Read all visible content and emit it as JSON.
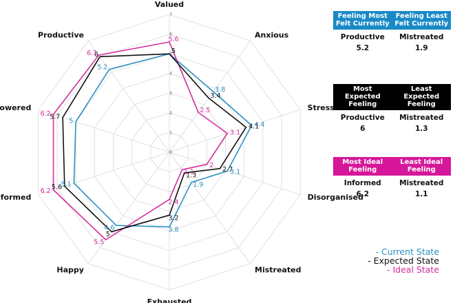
{
  "chart_data": {
    "type": "radar",
    "categories": [
      "Valued",
      "Anxious",
      "Stressed",
      "Disorganised",
      "Mistreated",
      "Exhausted",
      "Happy",
      "Informed",
      "Empowered",
      "Productive"
    ],
    "rlim": [
      0,
      7
    ],
    "r_ticks": [
      "0",
      "1",
      "2",
      "3",
      "4",
      "5",
      "6",
      "7"
    ],
    "grid": true,
    "legend_position": "bottom-right",
    "series": [
      {
        "name": "Current State",
        "color": "#2b8fc1",
        "values": [
          5,
          3.8,
          4.4,
          3.1,
          1.9,
          3.8,
          4.6,
          5.1,
          5,
          5.2
        ],
        "labels": [
          "5",
          "3.8",
          "4.4",
          "3.1",
          "1.9",
          "3.8",
          "4.6",
          "5.1",
          "5",
          "5.2"
        ]
      },
      {
        "name": "Expected State",
        "color": "#111111",
        "values": [
          5,
          3.4,
          4.1,
          2.7,
          1.3,
          3.2,
          5,
          5.6,
          5.7,
          6
        ],
        "labels": [
          "5",
          "3.4",
          "4.1",
          "2.7",
          "1.3",
          "3.2",
          "5",
          "5.6",
          "5.7",
          "6"
        ]
      },
      {
        "name": "Ideal State",
        "color": "#d42c9c",
        "values": [
          5.6,
          2.5,
          3.1,
          2,
          1.1,
          2.4,
          5.5,
          6.2,
          6.2,
          6.1
        ],
        "labels": [
          "5.6",
          "2.5",
          "3.1",
          "2",
          "1.1",
          "2.4",
          "5.5",
          "6.2",
          "6.2",
          "6.1"
        ]
      }
    ]
  },
  "summary": [
    {
      "color": "#1a8ac7",
      "head_left": "Feeling Most Felt Currently",
      "head_right": "Feeling Least Felt Currently",
      "name_left": "Productive",
      "name_right": "Mistreated",
      "value_left": "5.2",
      "value_right": "1.9"
    },
    {
      "color": "#000000",
      "head_left": "Most Expected Feeling",
      "head_right": "Least Expected Feeling",
      "name_left": "Productive",
      "name_right": "Mistreated",
      "value_left": "6",
      "value_right": "1.3"
    },
    {
      "color": "#d6179a",
      "head_left": "Most Ideal Feeling",
      "head_right": "Least Ideal Feeling",
      "name_left": "Informed",
      "name_right": "Mistreated",
      "value_left": "6.2",
      "value_right": "1.1"
    }
  ],
  "legend": [
    {
      "text": "- Current State",
      "color": "#2b8fc1"
    },
    {
      "text": "- Expected State",
      "color": "#111111"
    },
    {
      "text": "- Ideal State",
      "color": "#d42c9c"
    }
  ]
}
